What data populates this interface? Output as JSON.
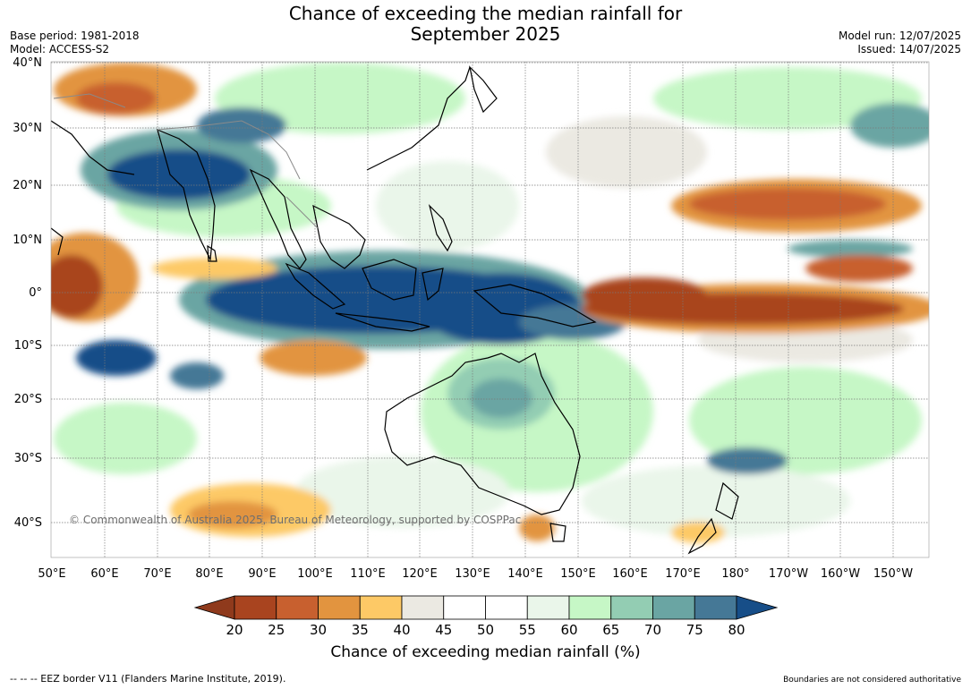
{
  "title": {
    "line1": "Chance of exceeding the median rainfall for",
    "line2": "September 2025"
  },
  "meta": {
    "base_period": "Base period: 1981-2018",
    "model": "Model: ACCESS-S2",
    "model_run": "Model run: 12/07/2025",
    "issued": "Issued: 14/07/2025"
  },
  "map": {
    "lat_labels": [
      "40°N",
      "30°N",
      "20°N",
      "10°N",
      "0°",
      "10°S",
      "20°S",
      "30°S",
      "40°S"
    ],
    "lon_labels": [
      "50°E",
      "60°E",
      "70°E",
      "80°E",
      "90°E",
      "100°E",
      "110°E",
      "120°E",
      "130°E",
      "140°E",
      "150°E",
      "160°E",
      "170°E",
      "180°",
      "170°W",
      "160°W",
      "150°W"
    ],
    "copyright": "© Commonwealth of Australia 2025, Bureau of Meteorology, supported by COSPPac"
  },
  "colorbar": {
    "ticks": [
      "20",
      "25",
      "30",
      "35",
      "40",
      "45",
      "50",
      "55",
      "60",
      "65",
      "70",
      "75",
      "80"
    ],
    "colors": [
      "#a9441f",
      "#c8602f",
      "#e2943f",
      "#fdc966",
      "#ebe9e2",
      "#ffffff",
      "#ffffff",
      "#eaf6ea",
      "#c6f7c6",
      "#93cdb3",
      "#6aa5a3",
      "#457896"
    ],
    "under_color": "#8f3a1c",
    "over_color": "#174e88",
    "caption": "Chance of exceeding median rainfall (%)"
  },
  "footer": {
    "eez_note": "--  --  -- EEZ border V11 (Flanders Marine Institute, 2019).",
    "boundaries_note": "Boundaries are not considered authoritative"
  }
}
